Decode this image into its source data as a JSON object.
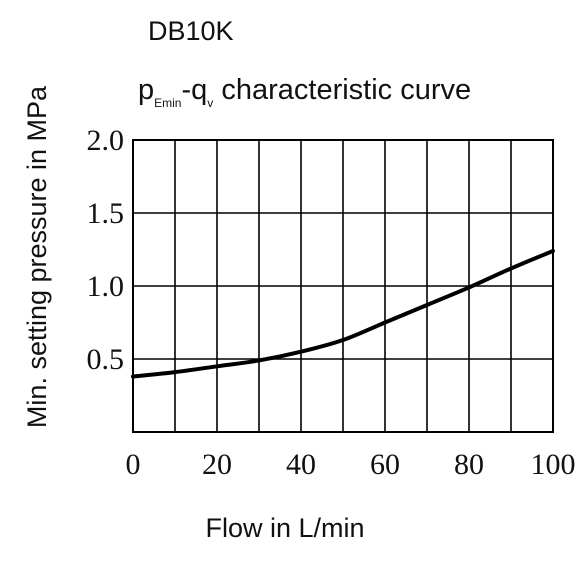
{
  "chart_data": {
    "type": "line",
    "title": "DB10K",
    "subtitle": {
      "p": "p",
      "p_sub": "Emin",
      "dash": "-q",
      "q_sub": "v",
      "rest": " characteristic curve"
    },
    "xlabel": "Flow in L/min",
    "ylabel": "Min. setting pressure in MPa",
    "xlim": [
      0,
      100
    ],
    "ylim": [
      0,
      2.0
    ],
    "x_ticks": [
      "0",
      "20",
      "40",
      "60",
      "80",
      "100"
    ],
    "y_ticks": [
      "0.5",
      "1.0",
      "1.5",
      "2.0"
    ],
    "grid": true,
    "x_grid_step": 10,
    "y_grid_step": 0.5,
    "line_color": "#000000",
    "series": [
      {
        "x": [
          0,
          10,
          20,
          30,
          40,
          50,
          60,
          70,
          80,
          90,
          100
        ],
        "values": [
          0.38,
          0.41,
          0.45,
          0.49,
          0.55,
          0.63,
          0.75,
          0.87,
          0.99,
          1.12,
          1.24
        ]
      }
    ]
  }
}
